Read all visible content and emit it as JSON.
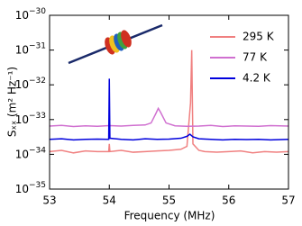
{
  "chart_data": {
    "type": "line",
    "xlabel": "Frequency (MHz)",
    "ylabel": "Sₓₓ (m² Hz⁻¹)",
    "yscale": "log",
    "xlim": [
      53,
      57
    ],
    "xticks": [
      53,
      54,
      55,
      56,
      57
    ],
    "ylim": [
      1e-35,
      1e-30
    ],
    "yticks": [
      {
        "value": 1e-35,
        "label": "10−35"
      },
      {
        "value": 1e-34,
        "label": "10−34"
      },
      {
        "value": 1e-33,
        "label": "10−33"
      },
      {
        "value": 1e-32,
        "label": "10−32"
      },
      {
        "value": 1e-31,
        "label": "10−31"
      },
      {
        "value": 1e-30,
        "label": "10−30"
      }
    ],
    "legend": "upper right",
    "series": [
      {
        "name": "295 K",
        "color": "#f08080",
        "x": [
          53,
          53.2,
          53.4,
          53.6,
          53.8,
          53.99,
          54,
          54.01,
          54.2,
          54.4,
          54.6,
          54.8,
          55,
          55.2,
          55.3,
          55.36,
          55.38,
          55.4,
          55.5,
          55.6,
          55.8,
          56,
          56.2,
          56.4,
          56.6,
          56.8,
          57
        ],
        "values": [
          1.2e-34,
          1.3e-34,
          1.1e-34,
          1.25e-34,
          1.2e-34,
          1.2e-34,
          2e-34,
          1.2e-34,
          1.3e-34,
          1.15e-34,
          1.2e-34,
          1.25e-34,
          1.3e-34,
          1.4e-34,
          1.7e-34,
          3e-33,
          1e-31,
          2e-34,
          1.3e-34,
          1.2e-34,
          1.15e-34,
          1.2e-34,
          1.25e-34,
          1.1e-34,
          1.2e-34,
          1.15e-34,
          1.2e-34
        ]
      },
      {
        "name": "77 K",
        "color": "#d070d0",
        "x": [
          53,
          53.2,
          53.4,
          53.6,
          53.8,
          54,
          54.2,
          54.4,
          54.6,
          54.7,
          54.78,
          54.82,
          54.86,
          54.95,
          55.1,
          55.3,
          55.5,
          55.7,
          55.9,
          56.1,
          56.3,
          56.5,
          56.7,
          57
        ],
        "values": [
          6.5e-34,
          6.8e-34,
          6.3e-34,
          6.6e-34,
          6.4e-34,
          6.7e-34,
          6.5e-34,
          6.8e-34,
          7e-34,
          8e-34,
          1.5e-33,
          2.1e-33,
          1.6e-33,
          8e-34,
          6.6e-34,
          6.4e-34,
          6.5e-34,
          6.8e-34,
          6.3e-34,
          6.6e-34,
          6.5e-34,
          6.4e-34,
          6.7e-34,
          6.5e-34
        ]
      },
      {
        "name": "4.2 K",
        "color": "#0000dd",
        "x": [
          53,
          53.2,
          53.4,
          53.6,
          53.8,
          53.99,
          54,
          54.01,
          54.2,
          54.4,
          54.6,
          54.8,
          55,
          55.2,
          55.3,
          55.35,
          55.4,
          55.5,
          55.7,
          55.9,
          56.1,
          56.3,
          56.5,
          56.7,
          57
        ],
        "values": [
          2.7e-34,
          2.8e-34,
          2.6e-34,
          2.7e-34,
          2.75e-34,
          2.7e-34,
          1.5e-32,
          2.9e-34,
          2.7e-34,
          2.6e-34,
          2.8e-34,
          2.7e-34,
          2.75e-34,
          2.9e-34,
          3.3e-34,
          3.8e-34,
          3.2e-34,
          2.8e-34,
          2.7e-34,
          2.6e-34,
          2.7e-34,
          2.65e-34,
          2.7e-34,
          2.6e-34,
          2.7e-34
        ]
      }
    ]
  }
}
